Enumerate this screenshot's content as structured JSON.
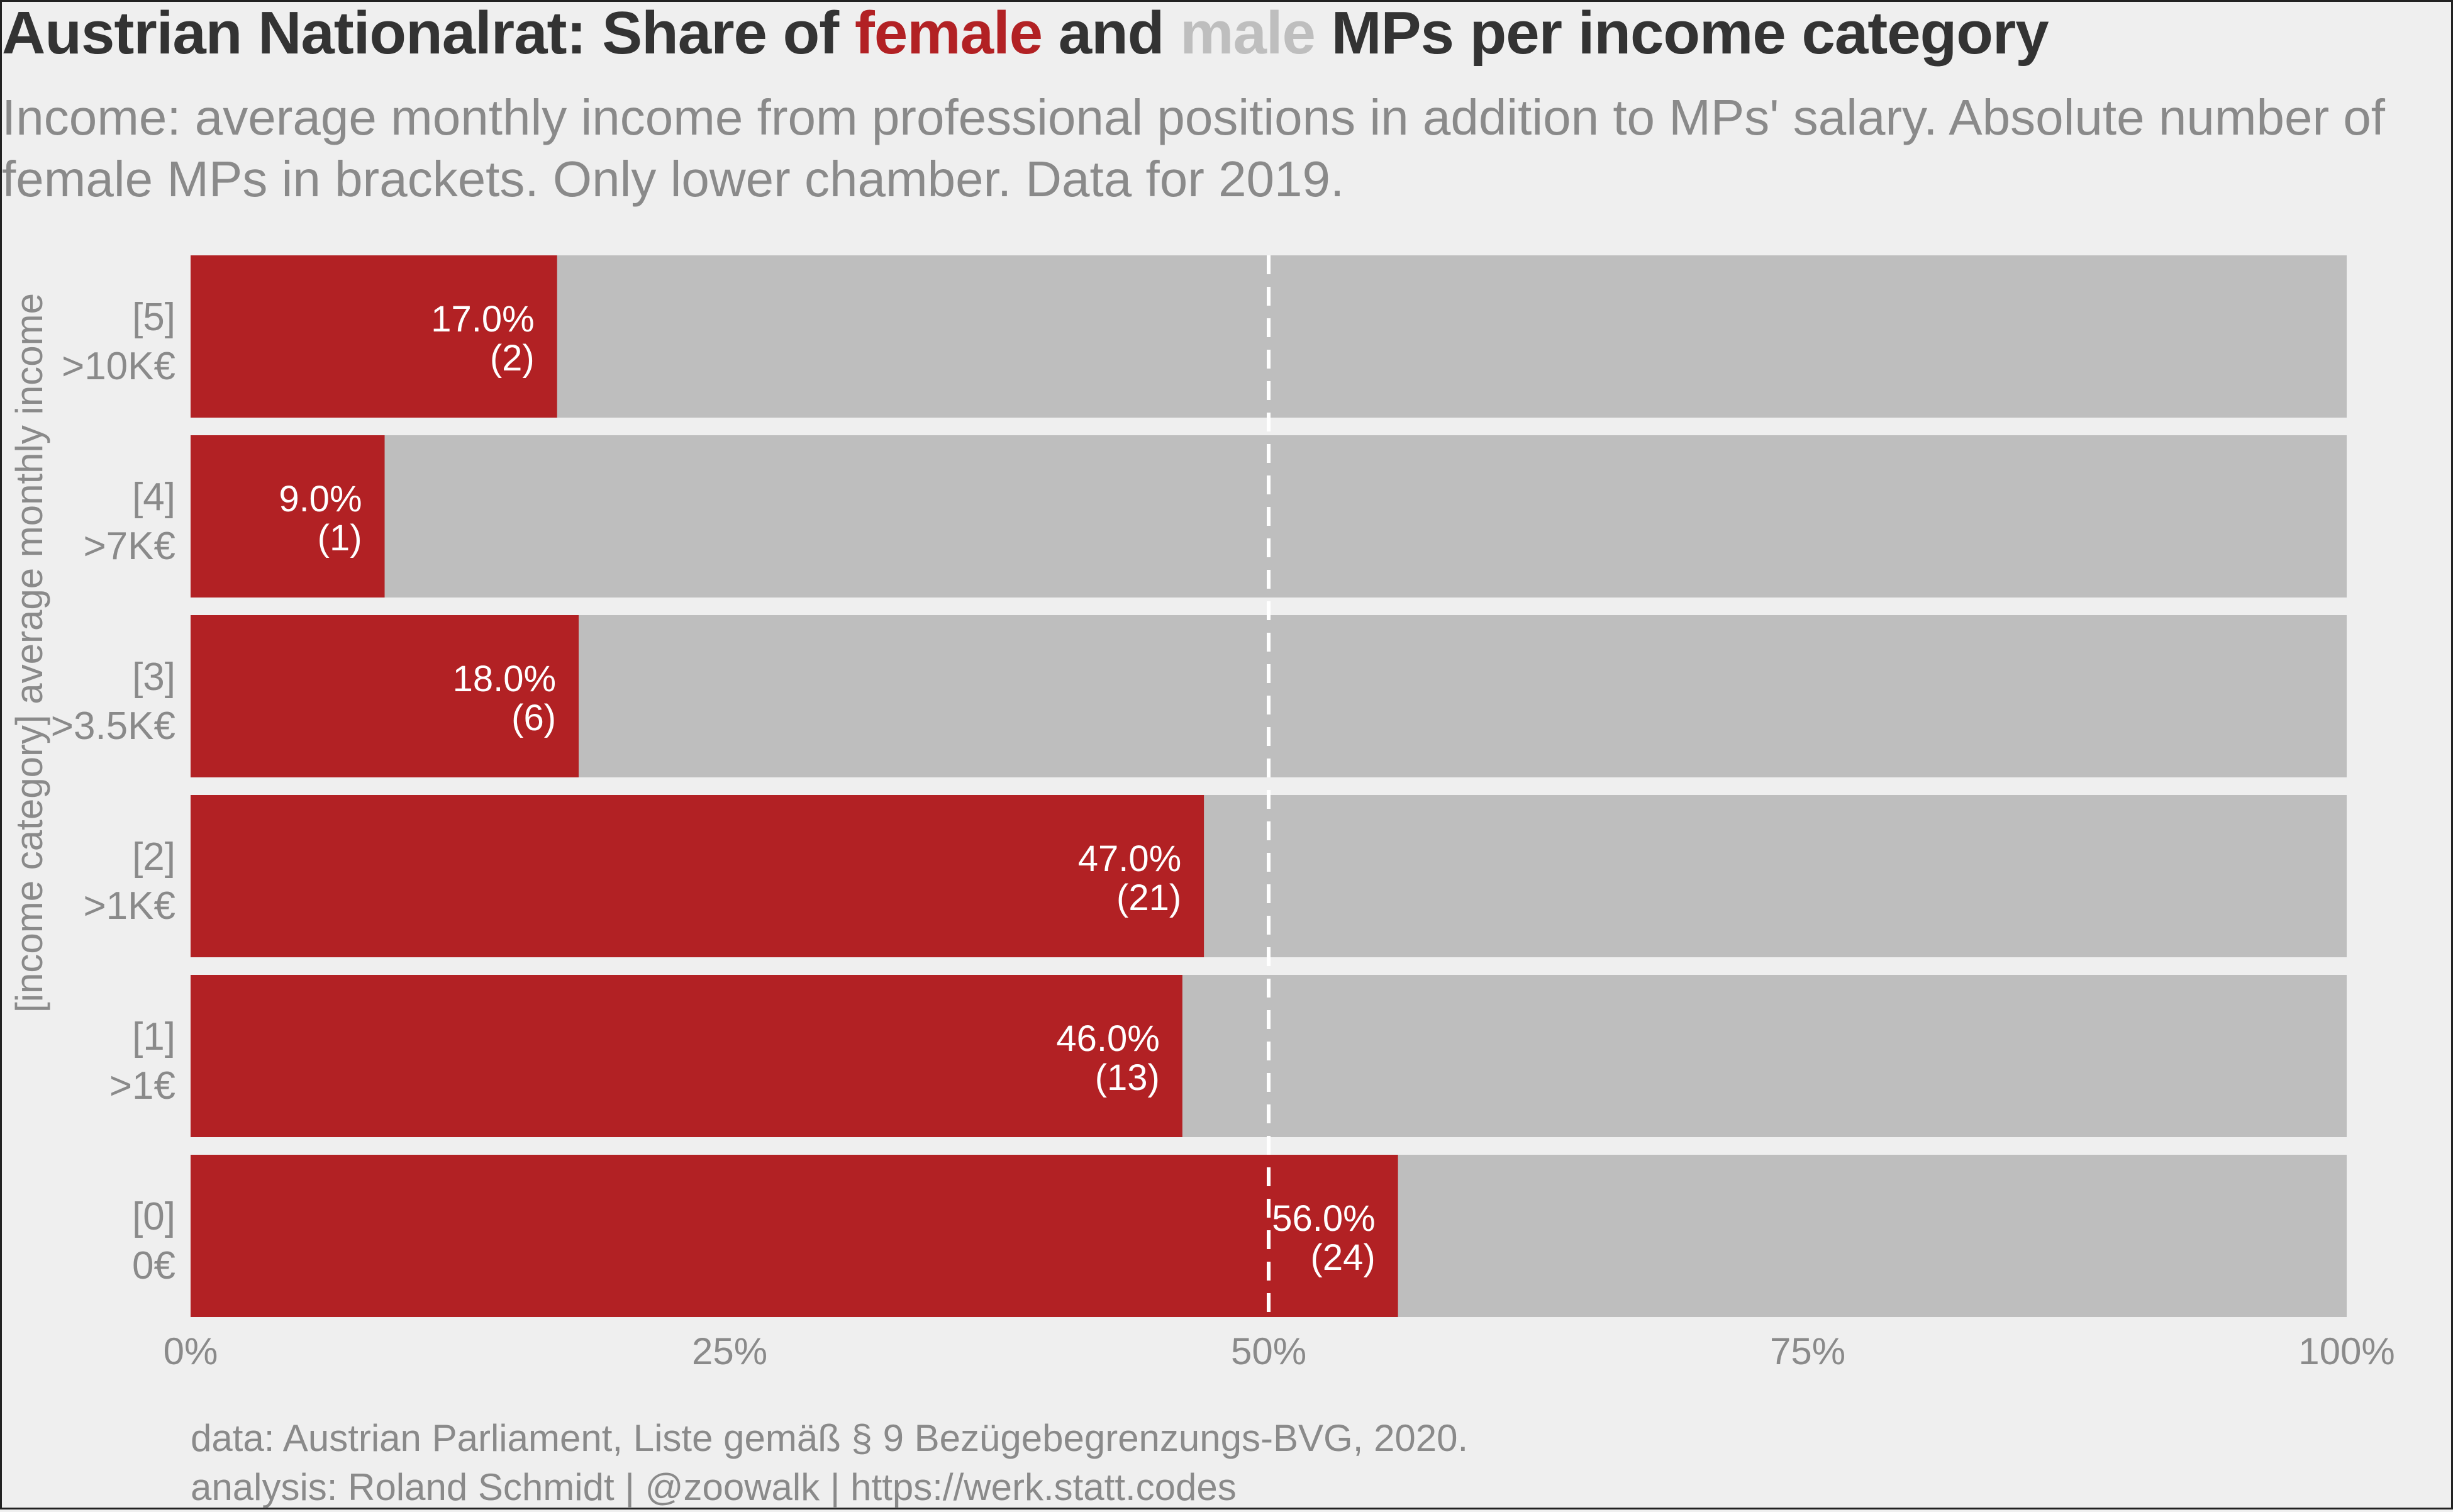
{
  "header": {
    "title_parts": [
      "Austrian Nationalrat: Share of ",
      "female",
      " and ",
      "male",
      " MPs per income category"
    ],
    "subtitle_line1": "Income: average monthly income from professional positions in addition to MPs' salary. Absolute number of",
    "subtitle_line2": "female MPs in brackets. Only lower chamber. Data for 2019."
  },
  "caption": {
    "line1": "data: Austrian Parliament, Liste gemäß § 9 Bezügebegrenzungs-BVG, 2020.",
    "line2": "analysis: Roland Schmidt | @zoowalk | https://werk.statt.codes"
  },
  "colors": {
    "female": "#b22124",
    "male": "#bebebe",
    "background": "#efefef",
    "title_text": "#333333",
    "muted_text": "#8a8a8a",
    "bar_label": "#ffffff",
    "reference_line": "#ffffff"
  },
  "chart_data": {
    "type": "bar",
    "orientation": "horizontal",
    "stacked": true,
    "title": "Austrian Nationalrat: Share of female and male MPs per income category",
    "ylabel": "[income category] average monthly income",
    "xlabel": "",
    "xlim": [
      0,
      1
    ],
    "x_ticks": [
      "0%",
      "25%",
      "50%",
      "75%",
      "100%"
    ],
    "x_tick_values": [
      0,
      0.25,
      0.5,
      0.75,
      1
    ],
    "reference_line": {
      "x": 0.5,
      "style": "dashed"
    },
    "categories": [
      {
        "code": "[5]",
        "label": ">10K€"
      },
      {
        "code": "[4]",
        "label": ">7K€"
      },
      {
        "code": "[3]",
        "label": ">3.5K€"
      },
      {
        "code": "[2]",
        "label": ">1K€"
      },
      {
        "code": "[1]",
        "label": ">1€"
      },
      {
        "code": "[0]",
        "label": "0€"
      }
    ],
    "series": [
      {
        "name": "female",
        "values": [
          0.17,
          0.09,
          0.18,
          0.47,
          0.46,
          0.56
        ]
      },
      {
        "name": "male",
        "values": [
          0.83,
          0.91,
          0.82,
          0.53,
          0.54,
          0.44
        ]
      }
    ],
    "data_labels": [
      {
        "pct": "17.0%",
        "count": "(2)"
      },
      {
        "pct": "9.0%",
        "count": "(1)"
      },
      {
        "pct": "18.0%",
        "count": "(6)"
      },
      {
        "pct": "47.0%",
        "count": "(21)"
      },
      {
        "pct": "46.0%",
        "count": "(13)"
      },
      {
        "pct": "56.0%",
        "count": "(24)"
      }
    ],
    "grid": false,
    "legend": "none"
  }
}
